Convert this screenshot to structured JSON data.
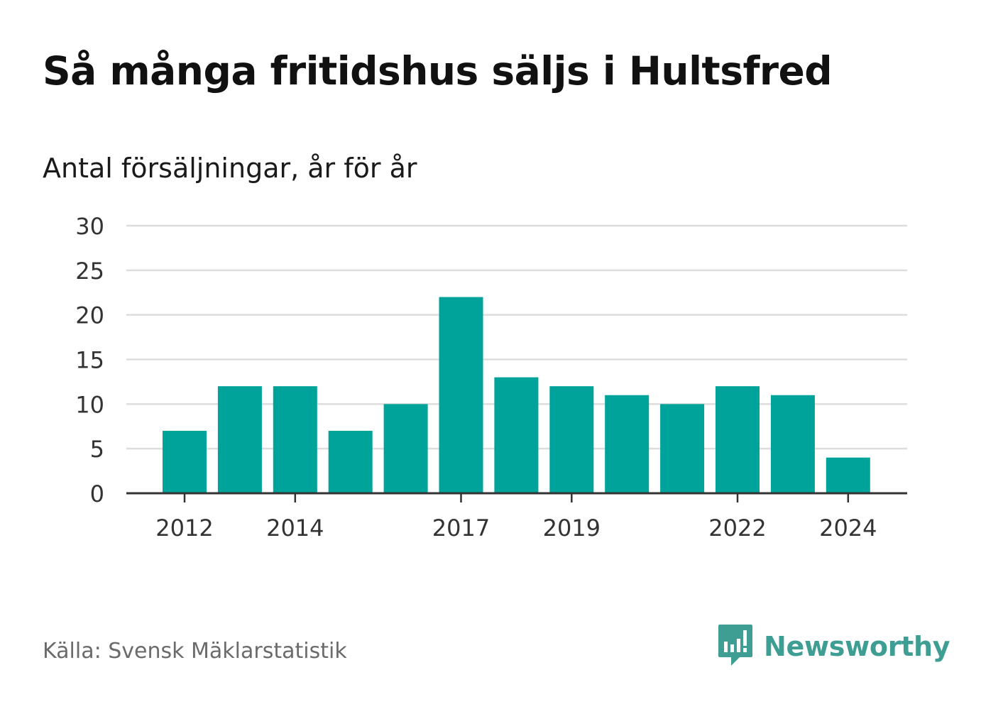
{
  "header": {
    "title": "Så många fritidshus säljs i Hultsfred",
    "subtitle": "Antal försäljningar, år för år"
  },
  "footer": {
    "source": "Källa: Svensk Mäklarstatistik",
    "brand_name": "Newsworthy",
    "brand_icon": "newsworthy-logo-icon",
    "brand_color": "#3e9e93"
  },
  "colors": {
    "bar": "#00a39a",
    "grid": "#dddddd",
    "axis": "#333333"
  },
  "chart_data": {
    "type": "bar",
    "categories": [
      "2012",
      "2013",
      "2014",
      "2015",
      "2016",
      "2017",
      "2018",
      "2019",
      "2020",
      "2021",
      "2022",
      "2023",
      "2024"
    ],
    "values": [
      7,
      12,
      12,
      7,
      10,
      22,
      13,
      12,
      11,
      10,
      12,
      11,
      4
    ],
    "x_tick_labels": [
      "2012",
      "2014",
      "2017",
      "2019",
      "2022",
      "2024"
    ],
    "y_ticks": [
      0,
      5,
      10,
      15,
      20,
      25,
      30
    ],
    "ylim": [
      0,
      30
    ],
    "grid": true,
    "legend": "none"
  }
}
